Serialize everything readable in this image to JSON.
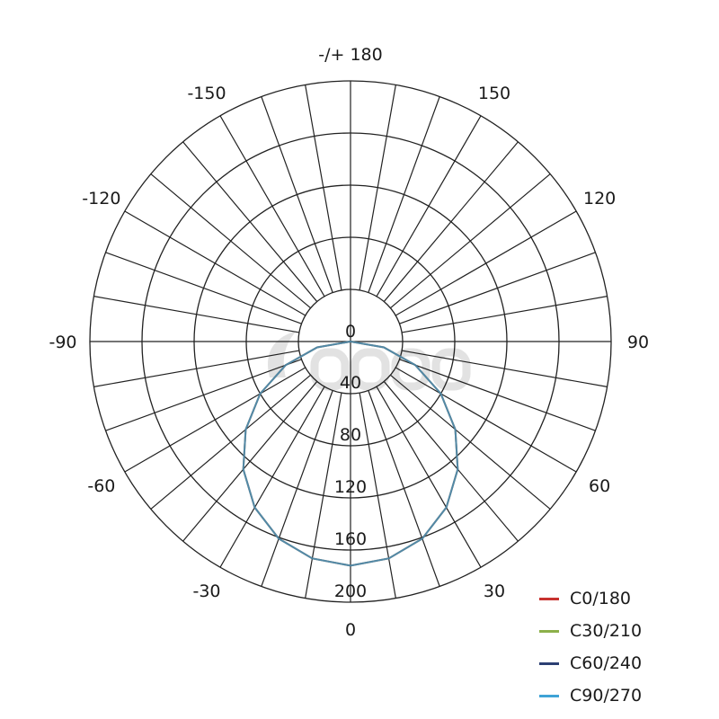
{
  "chart_data": {
    "type": "polar",
    "title": "",
    "angle_labels": [
      {
        "angle": 180,
        "text": "-/+ 180"
      },
      {
        "angle": 150,
        "text": "150"
      },
      {
        "angle": -150,
        "text": "-150"
      },
      {
        "angle": 120,
        "text": "120"
      },
      {
        "angle": -120,
        "text": "-120"
      },
      {
        "angle": 90,
        "text": "90"
      },
      {
        "angle": -90,
        "text": "-90"
      },
      {
        "angle": 60,
        "text": "60"
      },
      {
        "angle": -60,
        "text": "-60"
      },
      {
        "angle": 30,
        "text": "30"
      },
      {
        "angle": -30,
        "text": "-30"
      },
      {
        "angle": 0,
        "text": "0"
      }
    ],
    "radial_ticks": [
      "0",
      "40",
      "80",
      "120",
      "160",
      "200"
    ],
    "rlim": [
      0,
      200
    ],
    "angle_grid_step_deg": 10,
    "angles": [
      -90,
      -80,
      -70,
      -60,
      -50,
      -40,
      -30,
      -20,
      -10,
      0,
      10,
      20,
      30,
      40,
      50,
      60,
      70,
      80,
      90
    ],
    "series": [
      {
        "name": "C0/180",
        "color": "#c8322f",
        "values": [
          0,
          26,
          53,
          80,
          105,
          128,
          147,
          161,
          169,
          172,
          169,
          161,
          147,
          128,
          105,
          80,
          53,
          26,
          0
        ]
      },
      {
        "name": "C30/210",
        "color": "#8cb04a",
        "values": [
          0,
          26,
          53,
          80,
          105,
          128,
          147,
          161,
          169,
          172,
          169,
          161,
          147,
          128,
          105,
          80,
          53,
          26,
          0
        ]
      },
      {
        "name": "C60/240",
        "color": "#2c3f73",
        "values": [
          0,
          26,
          53,
          80,
          105,
          128,
          147,
          161,
          169,
          172,
          169,
          161,
          147,
          128,
          105,
          80,
          53,
          26,
          0
        ]
      },
      {
        "name": "C90/270",
        "color": "#3fa3d6",
        "values": [
          0,
          26,
          53,
          80,
          105,
          128,
          147,
          161,
          169,
          172,
          169,
          161,
          147,
          128,
          105,
          80,
          53,
          26,
          0
        ]
      }
    ],
    "legend_position": "bottom-right",
    "watermark": "nacom.sk"
  }
}
